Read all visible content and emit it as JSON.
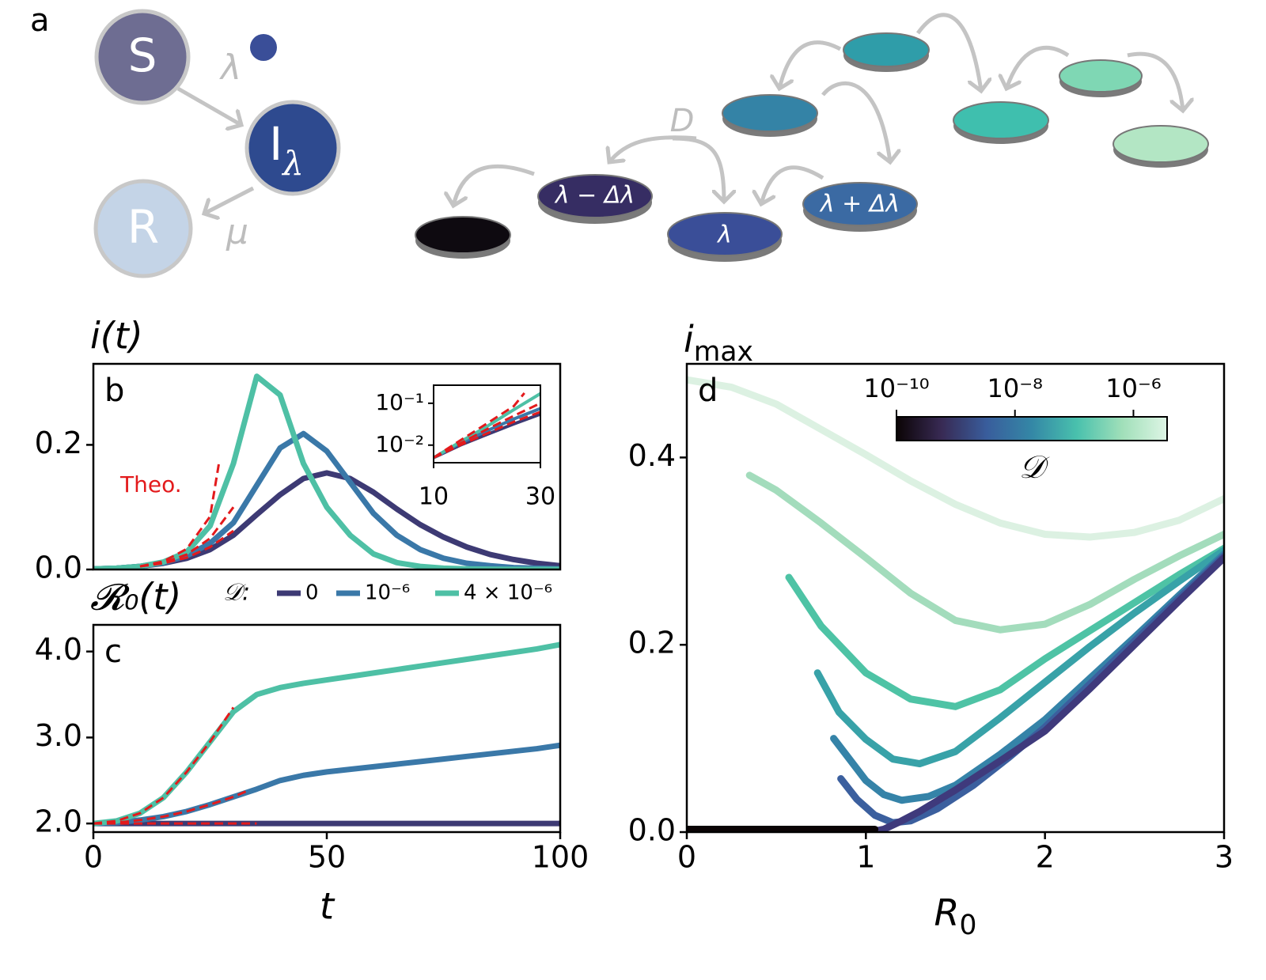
{
  "diagram": {
    "panel_label": "a",
    "nodes": [
      {
        "label": "S"
      },
      {
        "label": "I",
        "subscript": "λ"
      },
      {
        "label": "R"
      }
    ],
    "rates": [
      "λ",
      "μ"
    ],
    "diffusion_label": "D",
    "patches": [
      "λ − Δλ",
      "λ",
      "λ + Δλ"
    ]
  },
  "chart_data": [
    {
      "type": "line",
      "title": "i(t)",
      "panel_label": "b",
      "annotation": "Theo.",
      "xlim": [
        0,
        100
      ],
      "ylim": [
        0,
        0.33
      ],
      "yticks": [
        {
          "value": 0,
          "label": "0.0"
        },
        0.2
      ],
      "x": [
        0,
        5,
        10,
        15,
        20,
        25,
        30,
        35,
        40,
        45,
        50,
        55,
        60,
        65,
        70,
        75,
        80,
        85,
        90,
        95,
        100
      ],
      "legend_title": "𝒟:",
      "series": [
        {
          "name": "0",
          "color": "#3d3a74",
          "values": [
            0.001,
            0.002,
            0.005,
            0.01,
            0.018,
            0.032,
            0.055,
            0.088,
            0.12,
            0.146,
            0.155,
            0.146,
            0.124,
            0.097,
            0.072,
            0.052,
            0.036,
            0.024,
            0.016,
            0.01,
            0.006
          ]
        },
        {
          "name": "10⁻⁶",
          "color": "#3a78a8",
          "values": [
            0.001,
            0.002,
            0.005,
            0.011,
            0.022,
            0.042,
            0.075,
            0.135,
            0.195,
            0.218,
            0.19,
            0.14,
            0.09,
            0.055,
            0.032,
            0.018,
            0.01,
            0.006,
            0.003,
            0.002,
            0.001
          ]
        },
        {
          "name": "4 × 10⁻⁶",
          "color": "#4ec0a5",
          "values": [
            0.001,
            0.002,
            0.005,
            0.012,
            0.028,
            0.07,
            0.17,
            0.31,
            0.28,
            0.17,
            0.1,
            0.055,
            0.025,
            0.011,
            0.005,
            0.002,
            0.001,
            0.0004,
            0.0002,
            0.0001,
            0.0001
          ]
        }
      ],
      "theory": [
        {
          "color": "#e31a1c",
          "x": [
            10,
            15,
            20,
            25,
            30
          ],
          "values": [
            0.005,
            0.01,
            0.019,
            0.036,
            0.062
          ]
        },
        {
          "color": "#e31a1c",
          "x": [
            10,
            15,
            20,
            25,
            30
          ],
          "values": [
            0.005,
            0.011,
            0.024,
            0.05,
            0.1
          ]
        },
        {
          "color": "#e31a1c",
          "x": [
            10,
            15,
            20,
            25,
            27
          ],
          "values": [
            0.005,
            0.013,
            0.033,
            0.085,
            0.175
          ]
        }
      ],
      "inset": {
        "log_y": true,
        "xlim": [
          10,
          30
        ],
        "ylim": [
          0.0038,
          0.27
        ],
        "xticks": [
          10,
          30
        ],
        "yticks": [
          {
            "value": 0.1,
            "label": "10⁻¹"
          },
          {
            "value": 0.01,
            "label": "10⁻²"
          }
        ]
      }
    },
    {
      "type": "line",
      "title": "𝓡₀(t)",
      "panel_label": "c",
      "xlabel": "t",
      "xlim": [
        0,
        100
      ],
      "ylim": [
        1.9,
        4.31
      ],
      "xticks": [
        0,
        50,
        100
      ],
      "yticks": [
        {
          "value": 2,
          "label": "2.0"
        },
        {
          "value": 3,
          "label": "3.0"
        },
        {
          "value": 4,
          "label": "4.0"
        }
      ],
      "x": [
        0,
        5,
        10,
        15,
        20,
        25,
        30,
        35,
        40,
        45,
        50,
        55,
        60,
        65,
        70,
        75,
        80,
        85,
        90,
        95,
        100
      ],
      "series": [
        {
          "color": "#3d3a74",
          "values": [
            2,
            2,
            2,
            2,
            2,
            2,
            2,
            2,
            2,
            2,
            2,
            2,
            2,
            2,
            2,
            2,
            2,
            2,
            2,
            2,
            2
          ]
        },
        {
          "color": "#3a78a8",
          "values": [
            2.0,
            2.01,
            2.04,
            2.08,
            2.14,
            2.22,
            2.31,
            2.4,
            2.5,
            2.56,
            2.6,
            2.63,
            2.66,
            2.69,
            2.72,
            2.75,
            2.78,
            2.81,
            2.84,
            2.87,
            2.91
          ]
        },
        {
          "color": "#4ec0a5",
          "values": [
            2.0,
            2.03,
            2.12,
            2.3,
            2.6,
            2.95,
            3.3,
            3.5,
            3.58,
            3.63,
            3.67,
            3.71,
            3.75,
            3.79,
            3.83,
            3.87,
            3.91,
            3.95,
            3.99,
            4.03,
            4.08
          ]
        }
      ],
      "theory": [
        {
          "color": "#e31a1c",
          "x": [
            0,
            5,
            10,
            15,
            20,
            25,
            30
          ],
          "values": [
            2.0,
            2.03,
            2.12,
            2.3,
            2.6,
            2.95,
            3.35
          ]
        },
        {
          "color": "#e31a1c",
          "x": [
            0,
            5,
            10,
            15,
            20,
            25,
            30,
            33
          ],
          "values": [
            2.0,
            2.01,
            2.04,
            2.08,
            2.14,
            2.22,
            2.31,
            2.38
          ]
        },
        {
          "color": "#e31a1c",
          "x": [
            0,
            35
          ],
          "values": [
            2.0,
            2.0
          ]
        }
      ]
    },
    {
      "type": "line",
      "title": "i",
      "title_sub": "max",
      "panel_label": "d",
      "xlabel": "R",
      "xlabel_sub": "0",
      "xlim": [
        0,
        3
      ],
      "ylim": [
        0,
        0.5
      ],
      "xticks": [
        0,
        1,
        2,
        3
      ],
      "yticks": [
        {
          "value": 0,
          "label": "0.0"
        },
        0.2,
        0.4
      ],
      "series": [
        {
          "color": "#dcf1e2",
          "x": [
            0,
            0.25,
            0.5,
            0.75,
            1,
            1.25,
            1.5,
            1.75,
            2,
            2.25,
            2.5,
            2.75,
            3
          ],
          "values": [
            0.483,
            0.475,
            0.457,
            0.43,
            0.403,
            0.375,
            0.35,
            0.33,
            0.318,
            0.315,
            0.32,
            0.333,
            0.356
          ]
        },
        {
          "color": "#a3dcbc",
          "x": [
            0.35,
            0.5,
            0.75,
            1,
            1.25,
            1.5,
            1.75,
            2,
            2.25,
            2.5,
            2.75,
            3
          ],
          "values": [
            0.381,
            0.365,
            0.33,
            0.293,
            0.255,
            0.226,
            0.216,
            0.222,
            0.243,
            0.27,
            0.295,
            0.318
          ]
        },
        {
          "color": "#4ec3a5",
          "x": [
            0.57,
            0.75,
            1,
            1.25,
            1.5,
            1.75,
            2,
            2.25,
            2.5,
            2.75,
            3
          ],
          "values": [
            0.272,
            0.22,
            0.17,
            0.142,
            0.134,
            0.152,
            0.185,
            0.215,
            0.245,
            0.275,
            0.303
          ]
        },
        {
          "color": "#38a2a8",
          "x": [
            0.73,
            0.85,
            1,
            1.15,
            1.3,
            1.5,
            1.75,
            2,
            2.25,
            2.5,
            2.75,
            3
          ],
          "values": [
            0.17,
            0.128,
            0.099,
            0.078,
            0.073,
            0.086,
            0.122,
            0.16,
            0.198,
            0.234,
            0.268,
            0.301
          ]
        },
        {
          "color": "#3583a8",
          "x": [
            0.82,
            0.9,
            1,
            1.1,
            1.2,
            1.35,
            1.5,
            1.75,
            2,
            2.25,
            2.5,
            2.75,
            3
          ],
          "values": [
            0.1,
            0.08,
            0.055,
            0.04,
            0.034,
            0.038,
            0.05,
            0.083,
            0.12,
            0.164,
            0.208,
            0.253,
            0.297
          ]
        },
        {
          "color": "#3b5f9e",
          "x": [
            0.86,
            0.95,
            1.05,
            1.15,
            1.25,
            1.4,
            1.6,
            1.8,
            2,
            2.25,
            2.5,
            2.75,
            3
          ],
          "values": [
            0.057,
            0.035,
            0.018,
            0.01,
            0.012,
            0.025,
            0.05,
            0.08,
            0.112,
            0.158,
            0.204,
            0.25,
            0.295
          ]
        },
        {
          "color": "#3f3a7c",
          "x": [
            1.02,
            1.1,
            1.2,
            1.3,
            1.5,
            1.75,
            2,
            2.25,
            2.5,
            2.75,
            3
          ],
          "values": [
            0,
            0.003,
            0.012,
            0.022,
            0.045,
            0.076,
            0.108,
            0.153,
            0.2,
            0.247,
            0.293
          ]
        },
        {
          "color": "#0b0405",
          "x": [
            0,
            1.05
          ],
          "values": [
            0.003,
            0.003
          ]
        }
      ],
      "colorbar": {
        "label": "𝒟",
        "log": true,
        "lim": [
          1e-10,
          3.7e-06
        ],
        "ticks": [
          {
            "value": 1e-10,
            "label": "10⁻¹⁰"
          },
          {
            "value": 1e-08,
            "label": "10⁻⁸"
          },
          {
            "value": 1e-06,
            "label": "10⁻⁶"
          }
        ],
        "colormap": [
          "#0b0405",
          "#382a54",
          "#395d9c",
          "#3487a6",
          "#49c1ad",
          "#a0dfb9",
          "#def5e5"
        ]
      }
    }
  ]
}
